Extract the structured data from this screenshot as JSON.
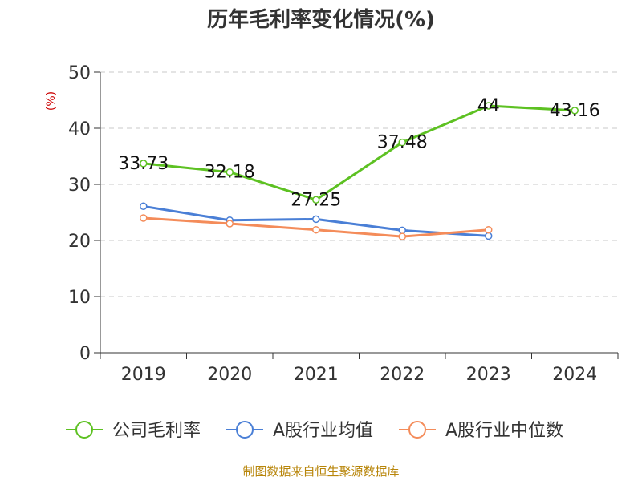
{
  "chart_data": {
    "type": "line",
    "title": "历年毛利率变化情况(%)",
    "ylabel": "(%)",
    "categories": [
      "2019",
      "2020",
      "2021",
      "2022",
      "2023",
      "2024"
    ],
    "yticks": [
      "0",
      "10",
      "20",
      "30",
      "40",
      "50"
    ],
    "ylim": [
      0,
      50
    ],
    "grid": true,
    "legend_position": "bottom",
    "series": [
      {
        "name": "公司毛利率",
        "values": [
          33.73,
          32.18,
          27.25,
          37.48,
          44,
          43.16
        ],
        "labels": [
          "33.73",
          "32.18",
          "27.25",
          "37.48",
          "44",
          "43.16"
        ],
        "color": "#5dc122"
      },
      {
        "name": "A股行业均值",
        "values": [
          26.1,
          23.6,
          23.8,
          21.8,
          20.8,
          null
        ],
        "color": "#4a7fd6"
      },
      {
        "name": "A股行业中位数",
        "values": [
          24.0,
          23.0,
          21.9,
          20.7,
          21.9,
          null
        ],
        "color": "#f48c5a"
      }
    ]
  },
  "source": "制图数据来自恒生聚源数据库"
}
